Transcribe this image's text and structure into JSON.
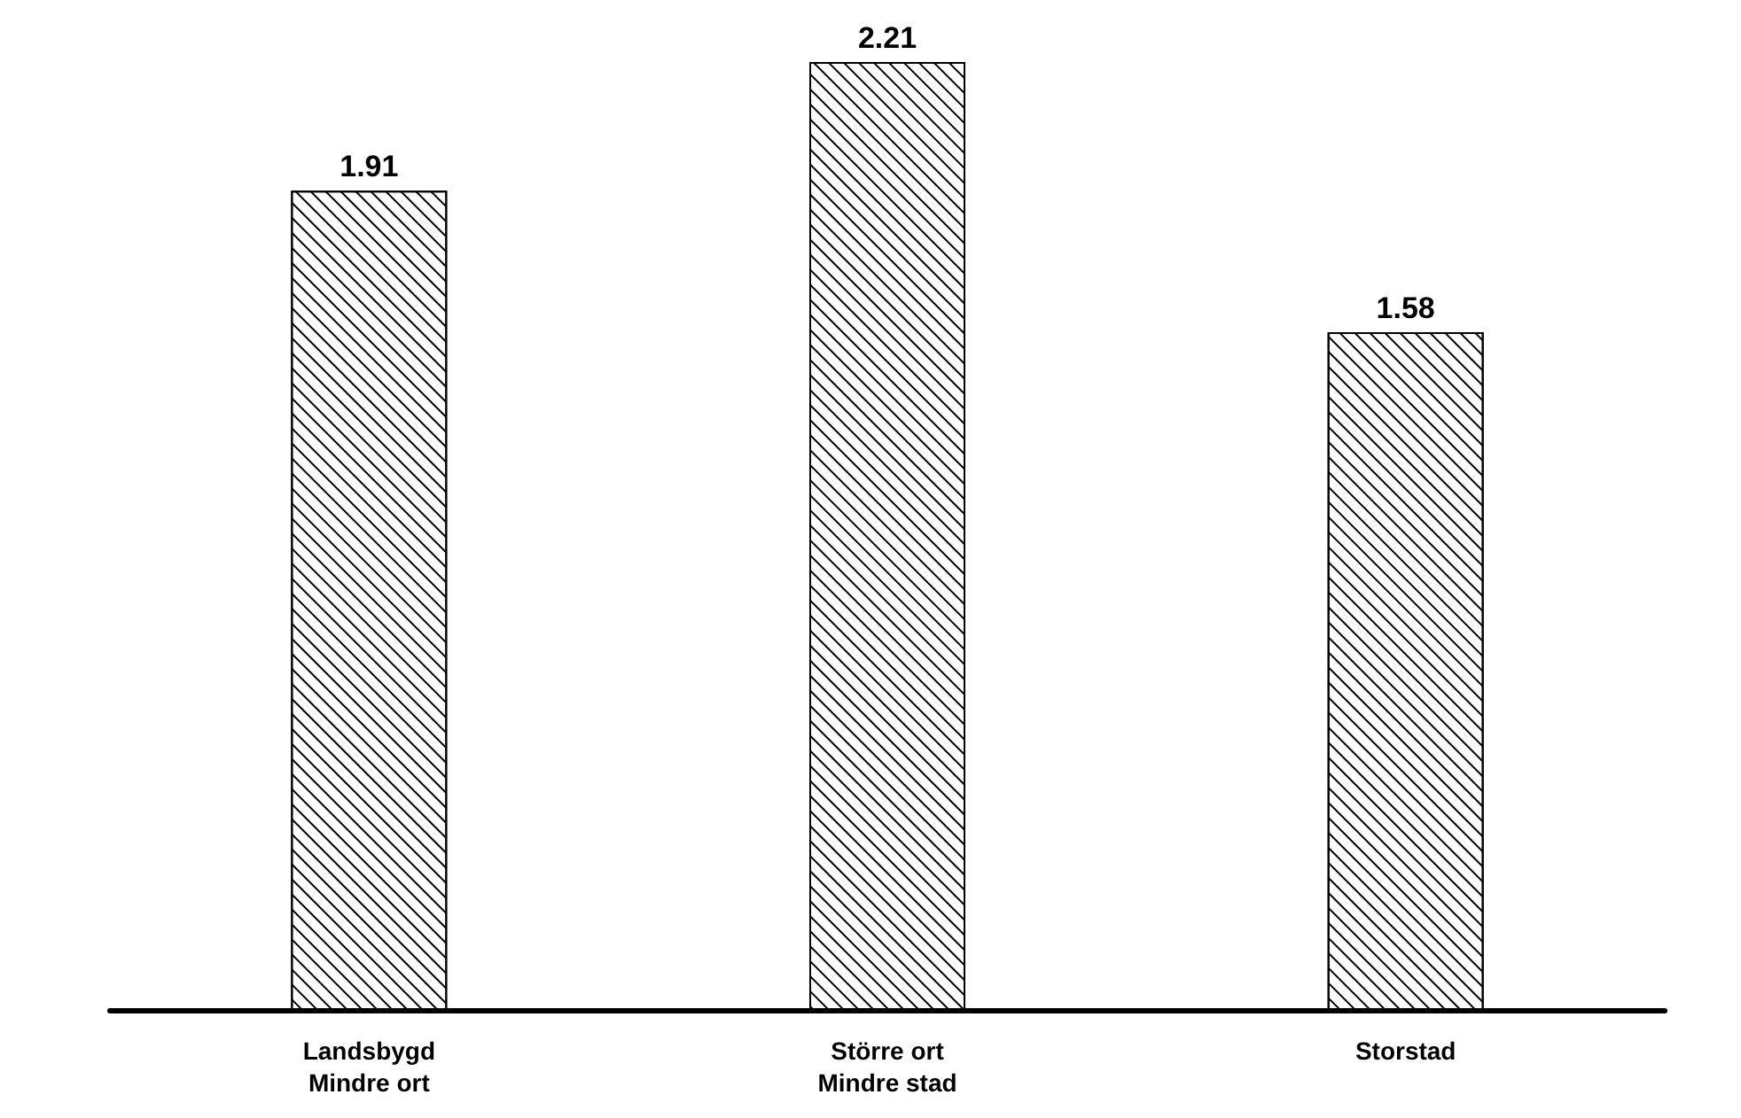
{
  "chart_data": {
    "type": "bar",
    "categories": [
      "Landsbygd\nMindre ort",
      "Större ort\nMindre stad",
      "Storstad"
    ],
    "values": [
      1.91,
      2.21,
      1.58
    ],
    "color": "#000000",
    "data_labels": true
  }
}
